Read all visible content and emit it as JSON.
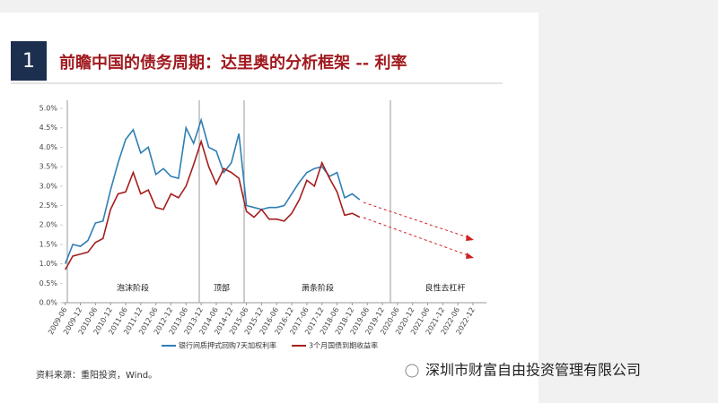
{
  "page_title": "前瞻中国的债务周期：达里奥的分析框架 -- 利率",
  "slide_number": "1",
  "source": "资料来源：重阳投资，Wind。",
  "watermark": "深圳市财富自由投资管理有限公司",
  "chart_data": {
    "type": "line",
    "x": [
      2009.5,
      2009.75,
      2010.0,
      2010.25,
      2010.5,
      2010.75,
      2011.0,
      2011.25,
      2011.5,
      2011.75,
      2012.0,
      2012.25,
      2012.5,
      2012.75,
      2013.0,
      2013.25,
      2013.5,
      2013.75,
      2014.0,
      2014.25,
      2014.5,
      2014.75,
      2015.0,
      2015.25,
      2015.5,
      2015.75,
      2016.0,
      2016.25,
      2016.5,
      2016.75,
      2017.0,
      2017.25,
      2017.5,
      2017.75,
      2018.0,
      2018.25,
      2018.5,
      2018.75,
      2019.0,
      2019.25
    ],
    "series": [
      {
        "name": "银行间质押式回购7天加权利率",
        "color": "#2f7fb5",
        "values": [
          1.0,
          1.5,
          1.45,
          1.6,
          2.05,
          2.1,
          2.9,
          3.6,
          4.2,
          4.45,
          3.85,
          4.0,
          3.3,
          3.45,
          3.25,
          3.2,
          4.5,
          4.1,
          4.7,
          4.0,
          3.9,
          3.35,
          3.6,
          4.35,
          2.5,
          2.45,
          2.4,
          2.45,
          2.45,
          2.5,
          2.8,
          3.1,
          3.35,
          3.45,
          3.5,
          3.25,
          3.35,
          2.7,
          2.8,
          2.65
        ]
      },
      {
        "name": "3个月国债到期收益率",
        "color": "#a51d1d",
        "values": [
          0.85,
          1.2,
          1.25,
          1.3,
          1.55,
          1.65,
          2.4,
          2.8,
          2.85,
          3.35,
          2.8,
          2.9,
          2.45,
          2.4,
          2.8,
          2.7,
          3.0,
          3.55,
          4.15,
          3.5,
          3.05,
          3.45,
          3.35,
          3.2,
          2.35,
          2.2,
          2.4,
          2.15,
          2.15,
          2.1,
          2.3,
          2.65,
          3.15,
          3.0,
          3.6,
          3.2,
          2.85,
          2.25,
          2.3,
          2.2
        ]
      }
    ],
    "phases": [
      "泡沫阶段",
      "顶部",
      "萧条阶段",
      "良性去杠杆"
    ],
    "ylim": [
      0,
      5
    ],
    "yticks": [
      {
        "value": 0,
        "label": "0.0%"
      },
      {
        "value": 0.5,
        "label": "0.5%"
      },
      {
        "value": 1,
        "label": "1.0%"
      },
      {
        "value": 1.5,
        "label": "1.5%"
      },
      {
        "value": 2,
        "label": "2.0%"
      },
      {
        "value": 2.5,
        "label": "2.5%"
      },
      {
        "value": 3,
        "label": "3.0%"
      },
      {
        "value": 3.5,
        "label": "3.5%"
      },
      {
        "value": 4,
        "label": "4.0%"
      },
      {
        "value": 4.5,
        "label": "4.5%"
      },
      {
        "value": 5,
        "label": "5.0%"
      }
    ],
    "xlim": [
      2009.42,
      2023.0
    ],
    "xticks": [
      {
        "value": 2009.5,
        "label": "2009-06"
      },
      {
        "value": 2010.0,
        "label": "2009-12"
      },
      {
        "value": 2010.5,
        "label": "2010-06"
      },
      {
        "value": 2011.0,
        "label": "2010-12"
      },
      {
        "value": 2011.5,
        "label": "2011-06"
      },
      {
        "value": 2012.0,
        "label": "2011-12"
      },
      {
        "value": 2012.5,
        "label": "2012-06"
      },
      {
        "value": 2013.0,
        "label": "2012-12"
      },
      {
        "value": 2013.5,
        "label": "2013-06"
      },
      {
        "value": 2014.0,
        "label": "2013-12"
      },
      {
        "value": 2014.5,
        "label": "2014-06"
      },
      {
        "value": 2015.0,
        "label": "2014-12"
      },
      {
        "value": 2015.5,
        "label": "2015-06"
      },
      {
        "value": 2016.0,
        "label": "2015-12"
      },
      {
        "value": 2016.5,
        "label": "2016-06"
      },
      {
        "value": 2017.0,
        "label": "2016-12"
      },
      {
        "value": 2017.5,
        "label": "2017-06"
      },
      {
        "value": 2018.0,
        "label": "2017-12"
      },
      {
        "value": 2018.5,
        "label": "2018-06"
      },
      {
        "value": 2019.0,
        "label": "2018-12"
      },
      {
        "value": 2019.5,
        "label": "2019-06"
      },
      {
        "value": 2020.0,
        "label": "2019-12"
      },
      {
        "value": 2020.5,
        "label": "2020-06"
      },
      {
        "value": 2021.0,
        "label": "2020-12"
      },
      {
        "value": 2021.5,
        "label": "2021-06"
      },
      {
        "value": 2022.0,
        "label": "2021-12"
      },
      {
        "value": 2022.5,
        "label": "2022-06"
      },
      {
        "value": 2023.0,
        "label": "2022-12"
      }
    ]
  }
}
